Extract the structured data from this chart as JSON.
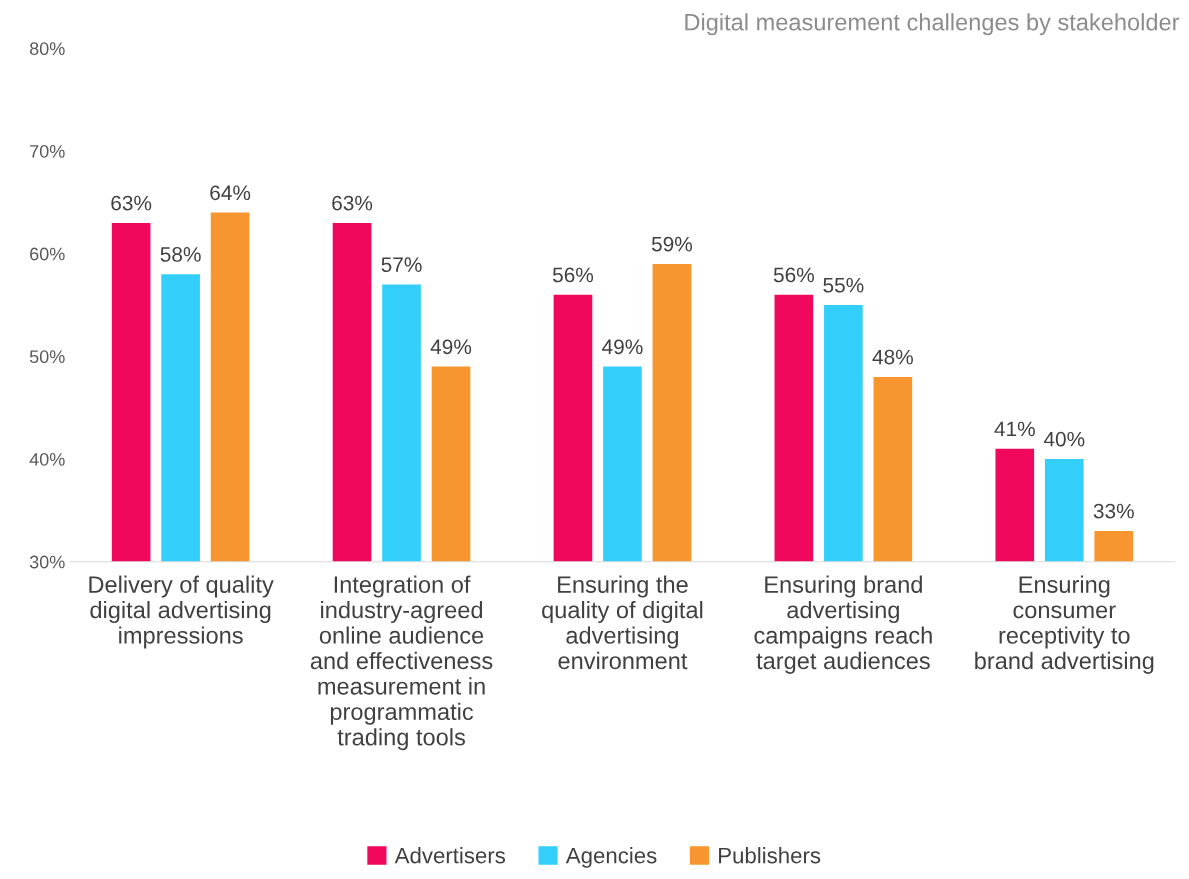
{
  "chart_data": {
    "type": "bar",
    "title": "Digital measurement challenges by stakeholder",
    "categories": [
      "Delivery of quality\ndigital advertising\nimpressions",
      "Integration of\nindustry-agreed\nonline audience\nand effectiveness\nmeasurement in\nprogrammatic\ntrading tools",
      "Ensuring the\nquality of digital\nadvertising\nenvironment",
      "Ensuring brand\nadvertising\ncampaigns reach\ntarget audiences",
      "Ensuring\nconsumer\nreceptivity to\nbrand advertising"
    ],
    "series": [
      {
        "name": "Advertisers",
        "color": "#f0085c",
        "values": [
          63,
          63,
          56,
          56,
          41
        ],
        "value_labels": [
          "63%",
          "63%",
          "56%",
          "56%",
          "41%"
        ]
      },
      {
        "name": "Agencies",
        "color": "#33cffa",
        "values": [
          58,
          57,
          49,
          55,
          40
        ],
        "value_labels": [
          "58%",
          "57%",
          "49%",
          "55%",
          "40%"
        ]
      },
      {
        "name": "Publishers",
        "color": "#f7962e",
        "values": [
          64,
          49,
          59,
          48,
          33
        ],
        "value_labels": [
          "64%",
          "49%",
          "59%",
          "48%",
          "33%"
        ]
      }
    ],
    "ylim": [
      30,
      80
    ],
    "yticks": [
      {
        "value": 30,
        "label": "30%"
      },
      {
        "value": 40,
        "label": "40%"
      },
      {
        "value": 50,
        "label": "50%"
      },
      {
        "value": 60,
        "label": "60%"
      },
      {
        "value": 70,
        "label": "70%"
      },
      {
        "value": 80,
        "label": "80%"
      }
    ],
    "grid": false,
    "legend": "bottom"
  }
}
